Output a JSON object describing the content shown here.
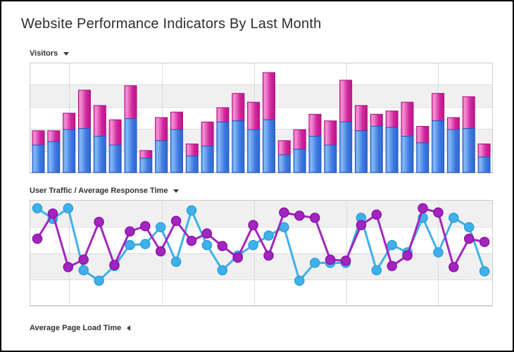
{
  "window": {
    "title": "Website Performance Indicators By Last Month"
  },
  "sections": {
    "visitors": {
      "label": "Visitors",
      "state": "expanded"
    },
    "traffic": {
      "label": "User Traffic / Average Response Time",
      "state": "expanded"
    },
    "load_time": {
      "label": "Average Page Load Time",
      "state": "collapsed"
    }
  },
  "colors": {
    "text": "#333333",
    "band_gray": "#f0f0f0",
    "grid": "#dcdcdc",
    "chart_border": "#cbcbcb",
    "axis": "#ababab",
    "frame_border": "#000000",
    "bar_blue_gradient": [
      "#5795EA",
      "#85B9F6",
      "#3C79DF",
      "#2F68D1"
    ],
    "bar_blue_border": "#2257BD",
    "bar_pink_gradient": [
      "#E865BD",
      "#F491D4",
      "#D0269C",
      "#BD1789"
    ],
    "bar_pink_border": "#AC0F7F",
    "line_cyan": "#3FB0EA",
    "line_purple": "#A425BE"
  },
  "chart_data": [
    {
      "type": "bar",
      "stacked": true,
      "title": "Visitors",
      "xlabel": "",
      "ylabel": "",
      "ylim": [
        0,
        100
      ],
      "gridline_interval": 20,
      "grid": true,
      "legend": false,
      "axis_labels_visible": false,
      "series": [
        {
          "name": "Series 1 (blue, bottom)",
          "color": "#3C79DF",
          "values": [
            25,
            28,
            39,
            40,
            33,
            25,
            49,
            13,
            29,
            39,
            15,
            24,
            46,
            47,
            39,
            48,
            16,
            21,
            33,
            25,
            46,
            38,
            42,
            41,
            33,
            27,
            47,
            39,
            40,
            14
          ]
        },
        {
          "name": "Series 2 (pink, top)",
          "color": "#D0269C",
          "values": [
            13,
            10,
            15,
            35,
            28,
            23,
            30,
            7,
            21,
            16,
            11,
            22,
            13,
            25,
            25,
            43,
            13,
            18,
            20,
            22,
            38,
            23,
            11,
            15,
            31,
            15,
            25,
            11,
            29,
            12
          ]
        }
      ]
    },
    {
      "type": "line",
      "title": "User Traffic / Average Response Time",
      "xlabel": "",
      "ylabel": "",
      "ylim": [
        0,
        100
      ],
      "gridline_interval": 25,
      "grid": true,
      "legend": false,
      "axis_labels_visible": false,
      "series": [
        {
          "name": "User Traffic",
          "color": "#3FB0EA",
          "point_border": "#2D9FD8",
          "values": [
            92,
            82,
            92,
            33,
            23,
            37,
            57,
            58,
            74,
            41,
            90,
            57,
            33,
            47,
            57,
            66,
            74,
            23,
            40,
            40,
            40,
            83,
            33,
            57,
            50,
            83,
            50,
            83,
            74,
            32
          ]
        },
        {
          "name": "Average Response Time",
          "color": "#A425BE",
          "point_border": "#8912A8",
          "values": [
            63,
            87,
            36,
            43,
            79,
            38,
            70,
            75,
            51,
            80,
            61,
            68,
            56,
            45,
            76,
            47,
            88,
            85,
            83,
            43,
            42,
            76,
            86,
            37,
            47,
            92,
            88,
            36,
            63,
            60
          ]
        }
      ]
    }
  ]
}
